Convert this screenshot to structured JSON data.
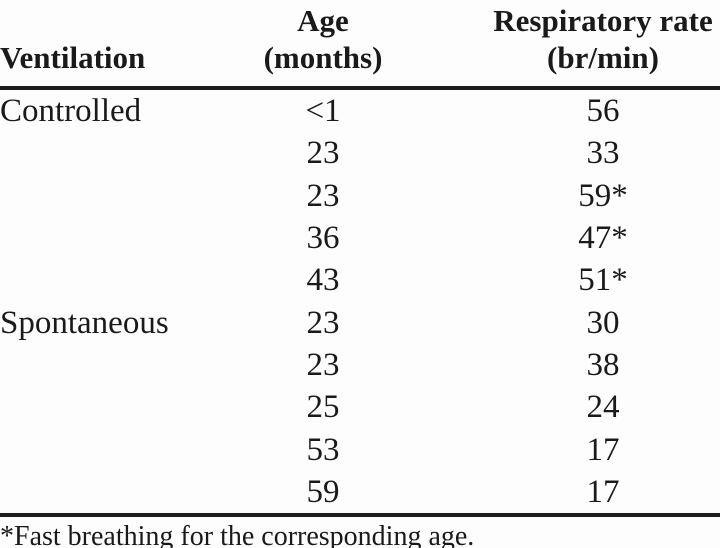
{
  "table": {
    "header": {
      "ventilation": "Ventilation",
      "age_line1": "Age",
      "age_line2": "(months)",
      "rate_line1": "Respiratory rate",
      "rate_line2": "(br/min)"
    },
    "rows": [
      {
        "ventilation": "Controlled",
        "age": "<1",
        "rate": "56"
      },
      {
        "ventilation": "",
        "age": "23",
        "rate": "33"
      },
      {
        "ventilation": "",
        "age": "23",
        "rate": "59*"
      },
      {
        "ventilation": "",
        "age": "36",
        "rate": "47*"
      },
      {
        "ventilation": "",
        "age": "43",
        "rate": "51*"
      },
      {
        "ventilation": "Spontaneous",
        "age": "23",
        "rate": "30"
      },
      {
        "ventilation": "",
        "age": "23",
        "rate": "38"
      },
      {
        "ventilation": "",
        "age": "25",
        "rate": "24"
      },
      {
        "ventilation": "",
        "age": "53",
        "rate": "17"
      },
      {
        "ventilation": "",
        "age": "59",
        "rate": "17"
      }
    ],
    "footnote": "*Fast breathing for the corresponding age.",
    "colors": {
      "text": "#1a1a1a",
      "rule": "#1d1d1d",
      "background": "#fdfdfd"
    }
  }
}
